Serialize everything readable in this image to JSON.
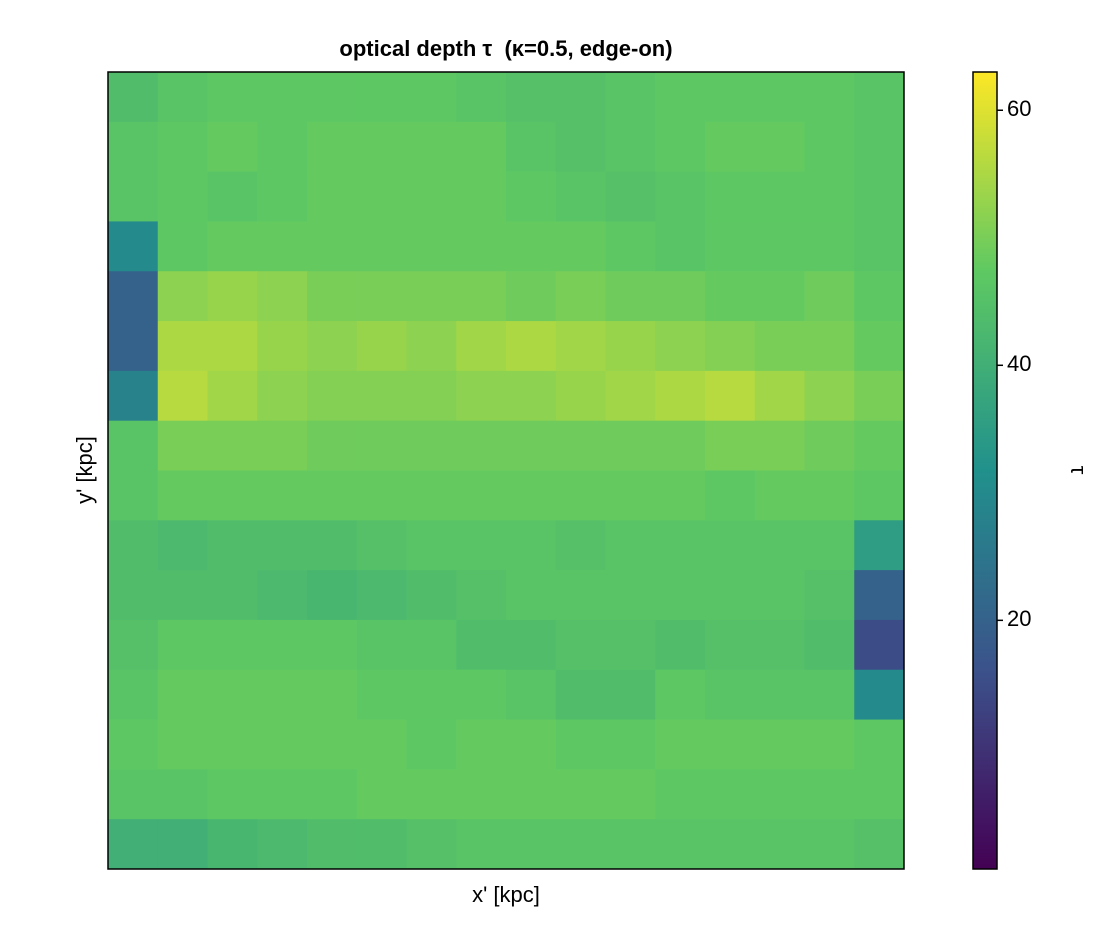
{
  "chart_data": {
    "type": "heatmap",
    "title": "optical depth τ  (κ=0.5, edge-on)",
    "x_label": "x' [kpc]",
    "y_label": "y' [kpc]",
    "colorbar_label": "τ",
    "colormap": "viridis",
    "clim": [
      0.5,
      63
    ],
    "cticks": [
      20,
      40,
      60
    ],
    "z": [
      [
        44,
        46,
        47,
        47,
        47,
        47,
        47,
        46,
        45,
        45,
        46,
        47,
        47,
        47,
        47,
        46
      ],
      [
        46,
        47,
        48,
        47,
        48,
        48,
        48,
        48,
        46,
        45,
        46,
        47,
        48,
        48,
        47,
        46
      ],
      [
        46,
        47,
        46,
        47,
        48,
        48,
        48,
        48,
        47,
        46,
        45,
        46,
        47,
        47,
        47,
        46
      ],
      [
        30,
        47,
        48,
        48,
        48,
        48,
        48,
        48,
        48,
        48,
        47,
        46,
        47,
        47,
        47,
        46
      ],
      [
        20,
        52,
        53,
        52,
        50,
        50,
        50,
        50,
        49,
        50,
        49,
        49,
        48,
        48,
        49,
        47
      ],
      [
        20,
        55,
        55,
        53,
        52,
        53,
        52,
        54,
        55,
        54,
        53,
        52,
        51,
        50,
        50,
        48
      ],
      [
        28,
        56,
        54,
        52,
        51,
        51,
        51,
        52,
        52,
        53,
        54,
        55,
        56,
        54,
        52,
        50
      ],
      [
        46,
        50,
        50,
        50,
        49,
        49,
        49,
        49,
        49,
        49,
        49,
        49,
        50,
        50,
        49,
        48
      ],
      [
        46,
        48,
        48,
        48,
        48,
        48,
        48,
        48,
        48,
        48,
        48,
        48,
        47,
        48,
        48,
        47
      ],
      [
        44,
        43,
        44,
        44,
        44,
        45,
        46,
        46,
        46,
        45,
        46,
        46,
        46,
        46,
        46,
        35
      ],
      [
        44,
        44,
        44,
        43,
        42,
        43,
        44,
        45,
        46,
        46,
        46,
        46,
        46,
        46,
        45,
        20
      ],
      [
        45,
        47,
        47,
        47,
        47,
        46,
        46,
        44,
        44,
        45,
        45,
        44,
        45,
        45,
        44,
        15
      ],
      [
        46,
        48,
        48,
        48,
        48,
        47,
        47,
        47,
        46,
        44,
        44,
        47,
        46,
        46,
        46,
        30
      ],
      [
        47,
        48,
        48,
        48,
        48,
        48,
        47,
        48,
        48,
        47,
        47,
        48,
        48,
        48,
        48,
        47
      ],
      [
        46,
        46,
        47,
        47,
        47,
        48,
        48,
        48,
        48,
        48,
        48,
        47,
        47,
        47,
        47,
        47
      ],
      [
        40,
        40,
        42,
        43,
        44,
        44,
        45,
        46,
        46,
        46,
        46,
        46,
        46,
        46,
        46,
        45
      ]
    ]
  }
}
